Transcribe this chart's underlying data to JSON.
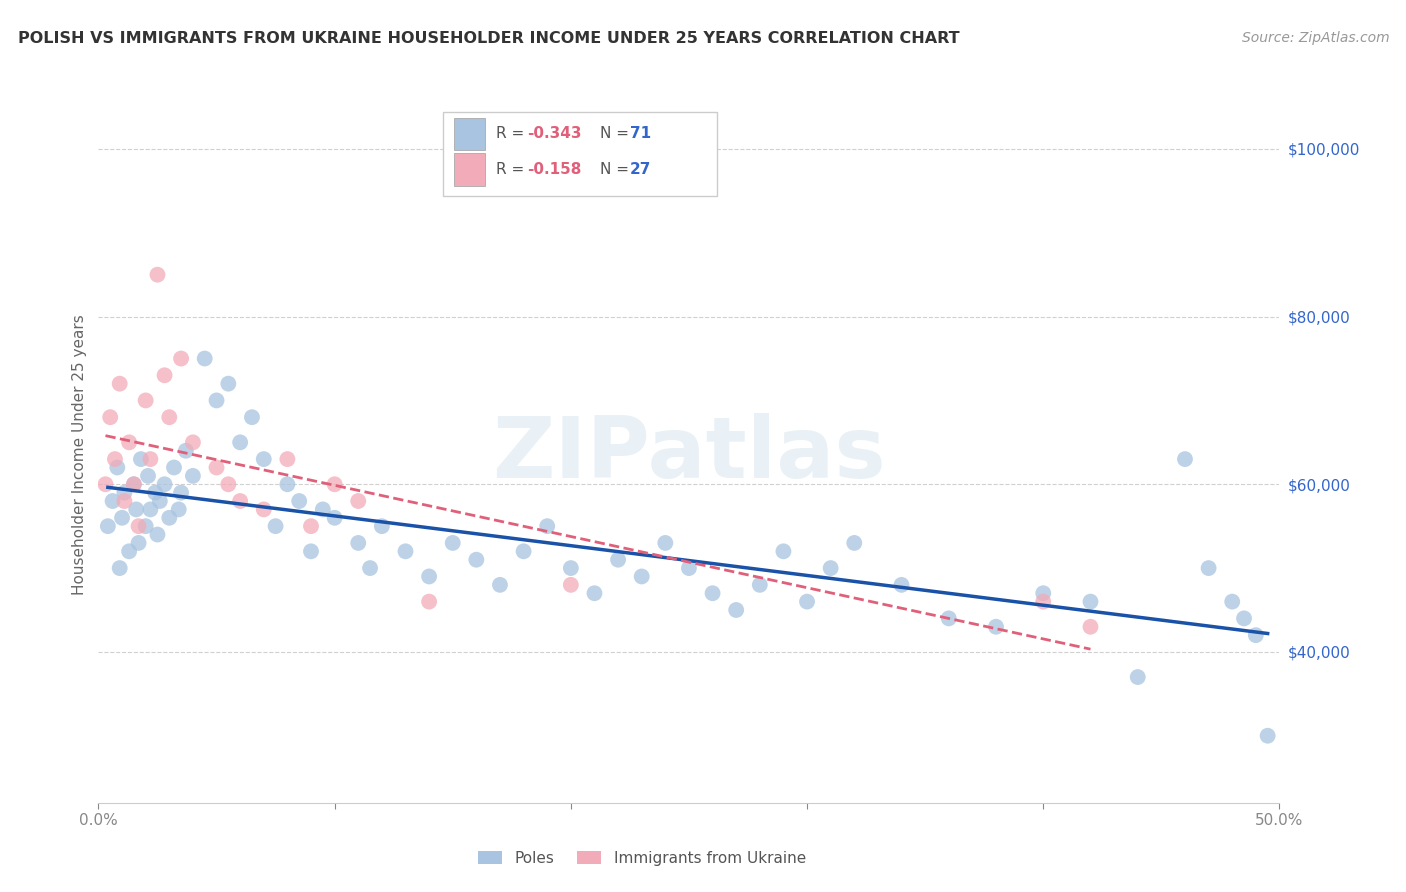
{
  "title": "POLISH VS IMMIGRANTS FROM UKRAINE HOUSEHOLDER INCOME UNDER 25 YEARS CORRELATION CHART",
  "source": "Source: ZipAtlas.com",
  "ylabel": "Householder Income Under 25 years",
  "xlim": [
    0,
    50
  ],
  "ylim": [
    22000,
    105000
  ],
  "yticks": [
    40000,
    60000,
    80000,
    100000
  ],
  "ytick_labels": [
    "$40,000",
    "$60,000",
    "$80,000",
    "$100,000"
  ],
  "xtick_labels": [
    "0.0%",
    "",
    "",
    "",
    "",
    "50.0%"
  ],
  "legend_r_blue": "-0.343",
  "legend_n_blue": "71",
  "legend_r_pink": "-0.158",
  "legend_n_pink": "27",
  "legend_label_blue": "Poles",
  "legend_label_pink": "Immigrants from Ukraine",
  "blue_color": "#a8c4e0",
  "pink_color": "#f2abb8",
  "line_blue": "#1a52a8",
  "line_pink": "#e0607a",
  "watermark": "ZIPatlas",
  "poles_x": [
    0.4,
    0.6,
    0.8,
    0.9,
    1.0,
    1.1,
    1.3,
    1.5,
    1.6,
    1.7,
    1.8,
    2.0,
    2.1,
    2.2,
    2.4,
    2.5,
    2.6,
    2.8,
    3.0,
    3.2,
    3.4,
    3.5,
    3.7,
    4.0,
    4.5,
    5.0,
    5.5,
    6.0,
    6.5,
    7.0,
    7.5,
    8.0,
    8.5,
    9.0,
    9.5,
    10.0,
    11.0,
    11.5,
    12.0,
    13.0,
    14.0,
    15.0,
    16.0,
    17.0,
    18.0,
    19.0,
    20.0,
    21.0,
    22.0,
    23.0,
    24.0,
    25.0,
    26.0,
    27.0,
    28.0,
    29.0,
    30.0,
    31.0,
    32.0,
    34.0,
    36.0,
    38.0,
    40.0,
    42.0,
    44.0,
    46.0,
    47.0,
    48.0,
    48.5,
    49.0,
    49.5
  ],
  "poles_y": [
    55000,
    58000,
    62000,
    50000,
    56000,
    59000,
    52000,
    60000,
    57000,
    53000,
    63000,
    55000,
    61000,
    57000,
    59000,
    54000,
    58000,
    60000,
    56000,
    62000,
    57000,
    59000,
    64000,
    61000,
    75000,
    70000,
    72000,
    65000,
    68000,
    63000,
    55000,
    60000,
    58000,
    52000,
    57000,
    56000,
    53000,
    50000,
    55000,
    52000,
    49000,
    53000,
    51000,
    48000,
    52000,
    55000,
    50000,
    47000,
    51000,
    49000,
    53000,
    50000,
    47000,
    45000,
    48000,
    52000,
    46000,
    50000,
    53000,
    48000,
    44000,
    43000,
    47000,
    46000,
    37000,
    63000,
    50000,
    46000,
    44000,
    42000,
    30000
  ],
  "ukraine_x": [
    0.3,
    0.5,
    0.7,
    0.9,
    1.1,
    1.3,
    1.5,
    1.7,
    2.0,
    2.2,
    2.5,
    2.8,
    3.0,
    3.5,
    4.0,
    5.0,
    5.5,
    6.0,
    7.0,
    8.0,
    9.0,
    10.0,
    11.0,
    14.0,
    20.0,
    40.0,
    42.0
  ],
  "ukraine_y": [
    60000,
    68000,
    63000,
    72000,
    58000,
    65000,
    60000,
    55000,
    70000,
    63000,
    85000,
    73000,
    68000,
    75000,
    65000,
    62000,
    60000,
    58000,
    57000,
    63000,
    55000,
    60000,
    58000,
    46000,
    48000,
    46000,
    43000
  ]
}
